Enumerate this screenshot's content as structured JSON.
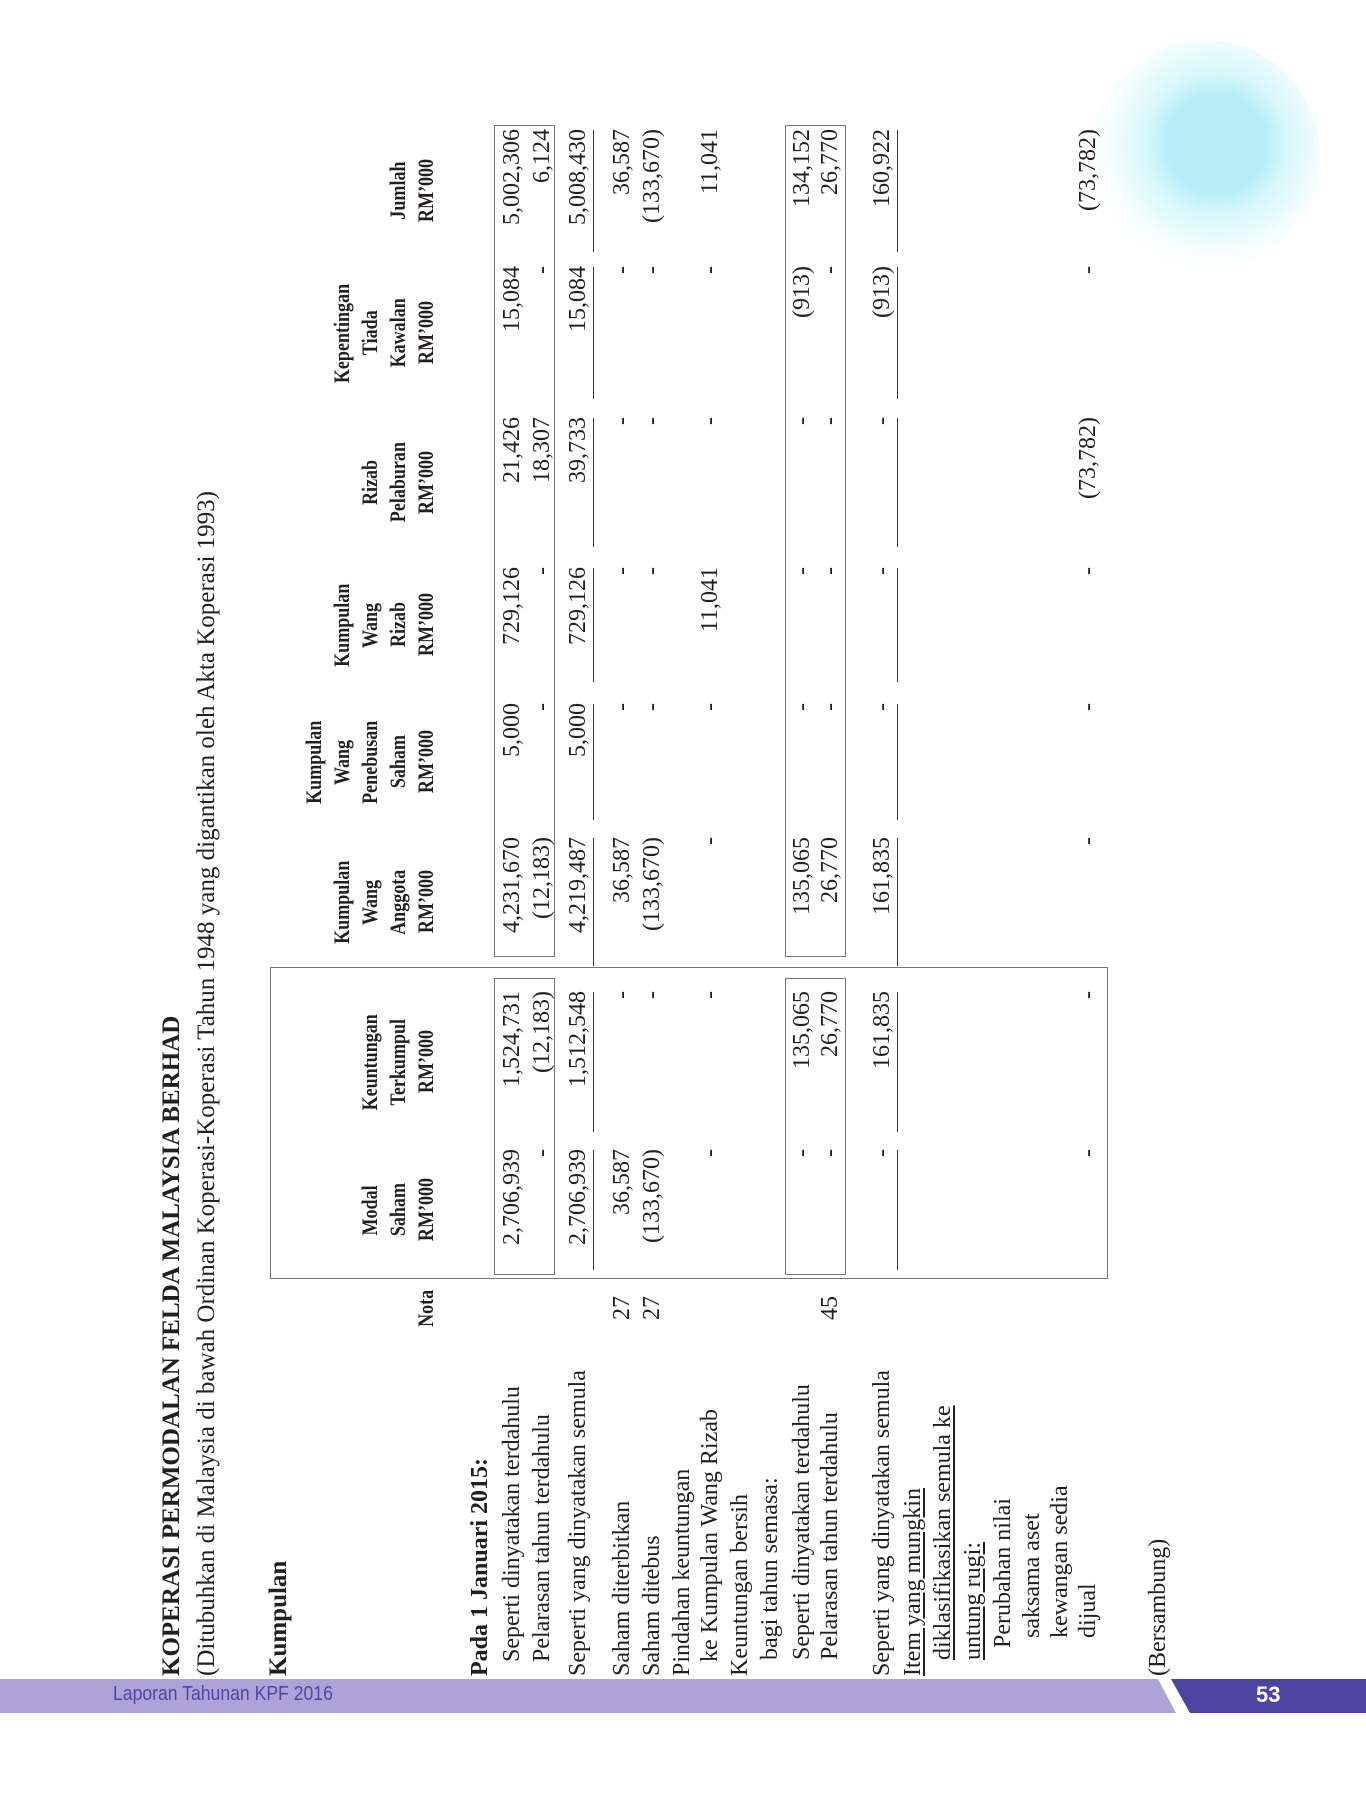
{
  "document": {
    "title": "KOPERASI PERMODALAN FELDA MALAYSIA BERHAD",
    "subtitle": "(Ditubuhkan di Malaysia di bawah Ordinan Koperasi-Koperasi Tahun 1948 yang digantikan oleh Akta Koperasi 1993)",
    "group_label": "Kumpulan",
    "continued": "(Bersambung)"
  },
  "table": {
    "nota_header": "Nota",
    "columns": [
      {
        "lines": [
          "Modal",
          "Saham",
          "RM’000"
        ]
      },
      {
        "lines": [
          "Keuntungan",
          "Terkumpul",
          "RM’000"
        ]
      },
      {
        "lines": [
          "Kumpulan",
          "Wang",
          "Anggota",
          "RM’000"
        ]
      },
      {
        "lines": [
          "Kumpulan",
          "Wang",
          "Penebusan",
          "Saham",
          "RM’000"
        ]
      },
      {
        "lines": [
          "Kumpulan",
          "Wang",
          "Rizab",
          "RM’000"
        ]
      },
      {
        "lines": [
          "Rizab",
          "Pelaburan",
          "RM’000"
        ]
      },
      {
        "lines": [
          "Kepentingan",
          "Tiada",
          "Kawalan",
          "RM’000"
        ]
      },
      {
        "lines": [
          "Jumlah",
          "RM’000"
        ]
      }
    ],
    "rows": [
      {
        "label": "Pada 1 Januari 2015:",
        "style": "bold",
        "nota": "",
        "values": []
      },
      {
        "label": "Seperti dinyatakan terdahulu",
        "nota": "",
        "values": [
          "2,706,939",
          "1,524,731",
          "4,231,670",
          "5,000",
          "729,126",
          "21,426",
          "15,084",
          "5,002,306"
        ]
      },
      {
        "label": "Pelarasan tahun terdahulu",
        "nota": "",
        "values": [
          "-",
          "(12,183)",
          "(12,183)",
          "-",
          "-",
          "18,307",
          "-",
          "6,124"
        ]
      },
      {
        "label": "Seperti yang dinyatakan semula",
        "nota": "",
        "values": [
          "2,706,939",
          "1,512,548",
          "4,219,487",
          "5,000",
          "729,126",
          "39,733",
          "15,084",
          "5,008,430"
        ]
      },
      {
        "label": "Saham diterbitkan",
        "nota": "27",
        "values": [
          "36,587",
          "-",
          "36,587",
          "-",
          "-",
          "-",
          "-",
          "36,587"
        ]
      },
      {
        "label": "Saham ditebus",
        "nota": "27",
        "values": [
          "(133,670)",
          "-",
          "(133,670)",
          "-",
          "-",
          "-",
          "-",
          "(133,670)"
        ]
      },
      {
        "label": "Pindahan keuntungan",
        "nota": "",
        "values": []
      },
      {
        "label": "ke Kumpulan Wang Rizab",
        "nota": "",
        "values": [
          "-",
          "-",
          "-",
          "-",
          "11,041",
          "-",
          "-",
          "11,041"
        ]
      },
      {
        "label": "Keuntungan bersih",
        "nota": "",
        "values": []
      },
      {
        "label": "bagi tahun semasa:",
        "nota": "",
        "values": []
      },
      {
        "label": "Seperti dinyatakan terdahulu",
        "nota": "",
        "values": [
          "-",
          "135,065",
          "135,065",
          "-",
          "-",
          "-",
          "(913)",
          "134,152"
        ]
      },
      {
        "label": "Pelarasan tahun terdahulu",
        "nota": "45",
        "values": [
          "-",
          "26,770",
          "26,770",
          "-",
          "-",
          "-",
          "-",
          "26,770"
        ]
      },
      {
        "label": "Seperti yang dinyatakan semula",
        "nota": "",
        "values": [
          "-",
          "161,835",
          "161,835",
          "-",
          "-",
          "-",
          "(913)",
          "160,922"
        ]
      },
      {
        "label": "Item yang mungkin",
        "style": "underline",
        "nota": "",
        "values": []
      },
      {
        "label": "diklasifikasikan semula ke",
        "style": "underline",
        "nota": "",
        "values": []
      },
      {
        "label": "untung rugi:",
        "style": "underline",
        "nota": "",
        "values": []
      },
      {
        "label": "Perubahan nilai",
        "nota": "",
        "values": []
      },
      {
        "label": "saksama aset",
        "nota": "",
        "values": []
      },
      {
        "label": "kewangan sedia",
        "nota": "",
        "values": []
      },
      {
        "label": "dijual",
        "nota": "",
        "values": [
          "-",
          "-",
          "-",
          "-",
          "-",
          "(73,782)",
          "-",
          "(73,782)"
        ]
      }
    ]
  },
  "footer": {
    "report_title": "Laporan Tahunan KPF 2016",
    "page_number": "53",
    "bar_color": "#ada3d8",
    "accent_color": "#4b44a1"
  }
}
